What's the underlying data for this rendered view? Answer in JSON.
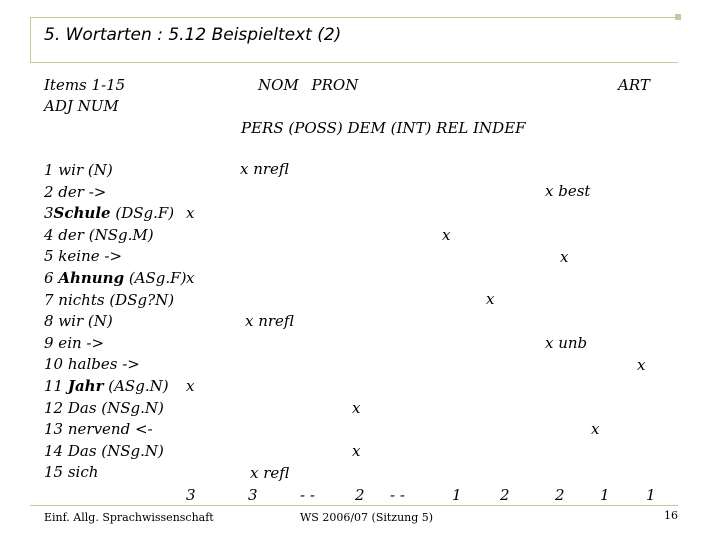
{
  "title": "5. Wortarten : 5.12 Beispieltext (2)",
  "header": {
    "items_label": "Items 1-15",
    "adj_num": "ADJ NUM",
    "nom_pron": "NOM PRON",
    "art": "ART",
    "pron_sub": "PERS (POSS) DEM (INT) REL INDEF"
  },
  "items": [
    {
      "pre": "1 wir (N)",
      "bold": "",
      "post": ""
    },
    {
      "pre": "2 der ->",
      "bold": "",
      "post": ""
    },
    {
      "pre": "3",
      "bold": "Schule",
      "post": " (DSg.F)"
    },
    {
      "pre": "4 der (NSg.M)",
      "bold": "",
      "post": ""
    },
    {
      "pre": "5 keine ->",
      "bold": "",
      "post": ""
    },
    {
      "pre": "6 ",
      "bold": "Ahnung",
      "post": " (ASg.F)"
    },
    {
      "pre": "7 nichts (DSg?N)",
      "bold": "",
      "post": ""
    },
    {
      "pre": "8 wir (N)",
      "bold": "",
      "post": ""
    },
    {
      "pre": "9 ein ->",
      "bold": "",
      "post": ""
    },
    {
      "pre": "10 halbes ->",
      "bold": "",
      "post": ""
    },
    {
      "pre": "11 ",
      "bold": "Jahr",
      "post": " (ASg.N)"
    },
    {
      "pre": "12 Das (NSg.N)",
      "bold": "",
      "post": ""
    },
    {
      "pre": "13 nervend <-",
      "bold": "",
      "post": ""
    },
    {
      "pre": "14 Das (NSg.N)",
      "bold": "",
      "post": ""
    },
    {
      "pre": "15 sich",
      "bold": "",
      "post": ""
    }
  ],
  "marks": [
    "x nrefl",
    "x best",
    "x",
    "x",
    "x",
    "x",
    "x",
    "x nrefl",
    "x unb",
    "x",
    "x",
    "x",
    "x",
    "x",
    "x refl"
  ],
  "totals": [
    "3",
    "3",
    "- -",
    "2",
    "- -",
    "1",
    "2",
    "2",
    "1",
    "1"
  ],
  "footer": {
    "left": "Einf. Allg. Sprachwissenschaft",
    "center": "WS 2006/07 (Sitzung 5)",
    "page": "16"
  }
}
